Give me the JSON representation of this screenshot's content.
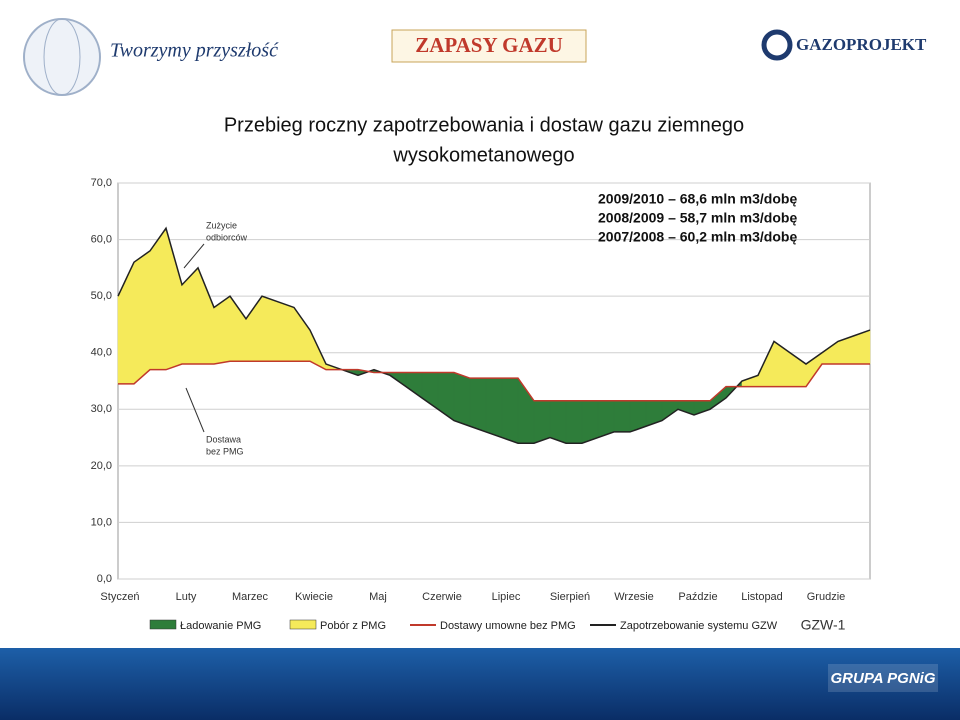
{
  "header": {
    "title": "ZAPASY GAZU",
    "tagline": "Tworzymy przyszłość",
    "logo": "GAZOPROJEKT"
  },
  "footer": {
    "logo": "GRUPA PGNiG"
  },
  "chart_data": {
    "type": "storage-balance",
    "title": "Przebieg roczny zapotrzebowania i dostaw gazu ziemnego",
    "subtitle": "wysokometanowego",
    "annotations": [
      "2009/2010 – 68,6 mln m3/dobę",
      "2008/2009 – 58,7 mln m3/dobę",
      "2007/2008 – 60,2 mln m3/dobę"
    ],
    "callouts": [
      "Zużycie",
      "odbiorców",
      "Dostawa",
      "bez PMG"
    ],
    "code": "GZW-1",
    "categories": [
      "Styczeń",
      null,
      null,
      null,
      "Luty",
      null,
      null,
      null,
      "Marzec",
      null,
      null,
      null,
      "Kwiecie",
      null,
      null,
      null,
      "Maj",
      null,
      null,
      null,
      "Czerwie",
      null,
      null,
      null,
      "Lipiec",
      null,
      null,
      null,
      "Sierpień",
      null,
      null,
      null,
      "Wrzesie",
      null,
      null,
      null,
      "Paździe",
      null,
      null,
      null,
      "Listopad",
      null,
      null,
      null,
      "Grudzie",
      null,
      null,
      null
    ],
    "ylim": [
      0,
      70
    ],
    "yticks": [
      {
        "value": 0,
        "label": "0,0"
      },
      {
        "value": 10,
        "label": "10,0"
      },
      {
        "value": 20,
        "label": "20,0"
      },
      {
        "value": 30,
        "label": "30,0"
      },
      {
        "value": 40,
        "label": "40,0"
      },
      {
        "value": 50,
        "label": "50,0"
      },
      {
        "value": 60,
        "label": "60,0"
      },
      {
        "value": 70,
        "label": "70,0"
      }
    ],
    "grid": true,
    "fills": [
      {
        "name": "Ładowanie PMG",
        "color": "#2e7d3a"
      },
      {
        "name": "Pobór z PMG",
        "color": "#f5ea5a"
      }
    ],
    "series": [
      {
        "name": "Zapotrzebowanie systemu GZW",
        "color": "#222222",
        "values": [
          50,
          56,
          58,
          62,
          52,
          55,
          48,
          50,
          46,
          50,
          49,
          48,
          44,
          38,
          37,
          36,
          37,
          36,
          34,
          32,
          30,
          28,
          27,
          26,
          25,
          24,
          24,
          25,
          24,
          24,
          25,
          26,
          26,
          27,
          28,
          30,
          29,
          30,
          32,
          35,
          36,
          42,
          40,
          38,
          40,
          42,
          43,
          44
        ]
      },
      {
        "name": "Dostawy umowne bez PMG",
        "color": "#c0392b",
        "values": [
          34.5,
          34.5,
          37,
          37,
          38,
          38,
          38,
          38.5,
          38.5,
          38.5,
          38.5,
          38.5,
          38.5,
          37,
          37,
          37,
          36.5,
          36.5,
          36.5,
          36.5,
          36.5,
          36.5,
          35.5,
          35.5,
          35.5,
          35.5,
          31.5,
          31.5,
          31.5,
          31.5,
          31.5,
          31.5,
          31.5,
          31.5,
          31.5,
          31.5,
          31.5,
          31.5,
          34,
          34,
          34,
          34,
          34,
          34,
          38,
          38,
          38,
          38
        ]
      }
    ]
  }
}
